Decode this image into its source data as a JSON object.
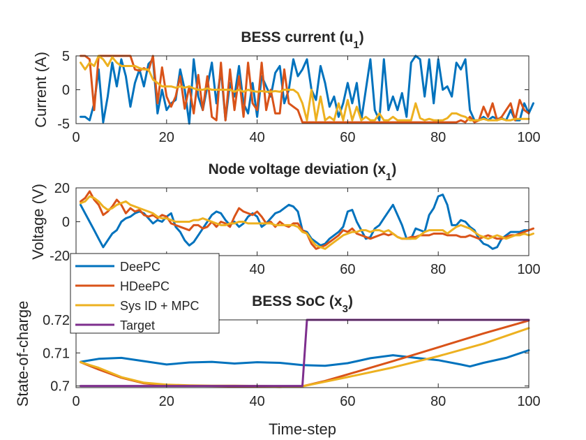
{
  "chart_data": [
    {
      "type": "line",
      "title": "BESS current (u",
      "title_sub": "1",
      "title_end": ")",
      "xlabel": "",
      "ylabel": "Current (A)",
      "xlim": [
        0,
        100
      ],
      "ylim": [
        -5,
        5
      ],
      "xticks": [
        0,
        20,
        40,
        60,
        80,
        100
      ],
      "yticks": [
        -5,
        0,
        5
      ],
      "series": [
        {
          "name": "DeePC",
          "color": "#0072BD",
          "values": [
            -4,
            -4,
            -4.5,
            -2,
            3,
            -4.8,
            -1,
            4,
            0.5,
            4.5,
            2,
            -2.5,
            1,
            3,
            0.5,
            3.8,
            4.5,
            -3.5,
            0,
            -3,
            -2,
            -1.5,
            3,
            0,
            -5,
            4.5,
            -1,
            -3,
            0.5,
            4,
            -2,
            3,
            -4.5,
            1,
            -1,
            3.5,
            -2,
            -3.5,
            1,
            -4,
            2,
            0.5,
            -1,
            2.5,
            3.5,
            -2,
            0,
            4.5,
            2,
            3,
            4.5,
            0,
            -1.5,
            3.5,
            1,
            -2.5,
            -1,
            -4,
            -2,
            1,
            -2,
            1,
            -4.5,
            0,
            4.5,
            -3,
            -4.5,
            4.5,
            -3,
            -1,
            -3,
            -0.5,
            -4,
            4,
            5,
            4.5,
            -1,
            4.5,
            -2,
            4.5,
            0,
            0.5,
            -1,
            4,
            3,
            4.5,
            -3,
            -4.5,
            -4.5,
            -4,
            -4.5,
            -4,
            -4.3,
            -4.2,
            -4.5,
            -3,
            -4.5,
            -4.5,
            -2,
            -3.5,
            -2
          ]
        },
        {
          "name": "HDeePC",
          "color": "#D95319",
          "values": [
            5,
            5,
            4.5,
            -3,
            5,
            5,
            5,
            5,
            5,
            5,
            5,
            5,
            3,
            2.8,
            3.2,
            2.8,
            5,
            -2,
            3.3,
            -1,
            -2.5,
            -1,
            2,
            -2.8,
            0.5,
            -3.5,
            2.2,
            -3,
            2,
            -4,
            -4.5,
            4,
            -4.5,
            3,
            -3,
            2,
            -4,
            4,
            -2,
            -3,
            4,
            -3,
            0,
            -3.5,
            -3.5,
            3,
            -2,
            -2.5,
            -3,
            -4.8,
            -4.8,
            -4.8,
            -4.8,
            -4.8,
            -4.8,
            -4.8,
            -4.8,
            -4.8,
            -4.8,
            -4.8,
            -4.8,
            -4.8,
            -4.8,
            -4.8,
            -4.8,
            -4.8,
            -4.8,
            -4.8,
            -4.8,
            -4.8,
            -4.8,
            -4.8,
            -4.8,
            -4.8,
            -4.8,
            -4.8,
            -4.8,
            -4.8,
            -4.8,
            -4.8,
            -4.8,
            -4.8,
            -4.8,
            -4.8,
            -4.5,
            -4.8,
            -4,
            -4.8,
            -4.5,
            -2.5,
            -4,
            -2,
            -4.5,
            -4,
            -3,
            -2,
            -4.5,
            -1.5,
            -3,
            -3.5
          ]
        },
        {
          "name": "Sys ID + MPC",
          "color": "#EDB120",
          "values": [
            4,
            3,
            4,
            3.5,
            5,
            4.5,
            3.5,
            4.8,
            4,
            3.5,
            3.5,
            3.5,
            3.5,
            3.2,
            3,
            3,
            1.5,
            1,
            0.5,
            0.5,
            0.5,
            0.3,
            0.5,
            0.3,
            0.5,
            0.2,
            0,
            0,
            0.2,
            0,
            0,
            0,
            0,
            0,
            -0.3,
            0,
            -0.3,
            0,
            -0.2,
            -0.3,
            -0.2,
            -0.3,
            -0.3,
            -0.2,
            -0.3,
            0,
            0,
            0,
            -0.5,
            -2,
            -4.5,
            0,
            -4.5,
            -1,
            -4.5,
            -4,
            -4.5,
            -2,
            -4.5,
            -1.5,
            -4.5,
            -2.5,
            -4.5,
            -4,
            -4.5,
            -4.5,
            -3.5,
            -4.5,
            -4.5,
            -4,
            -4.5,
            -4.5,
            -4.5,
            -4.5,
            -2,
            -4.2,
            -4.5,
            -4.3,
            -4.5,
            -4.5,
            -4.5,
            -4.2,
            -3.5,
            -3.5,
            -3.8,
            -4,
            -4.5,
            -4.5,
            -4.5,
            -4.3,
            -4.5,
            -4.5,
            -4.5,
            -4.3,
            -4.5,
            -4.5,
            -4.3,
            -4.3,
            -4.3,
            -4.3
          ]
        }
      ]
    },
    {
      "type": "line",
      "title": "Node voltage deviation (x",
      "title_sub": "1",
      "title_end": ")",
      "xlabel": "",
      "ylabel": "Voltage (V)",
      "xlim": [
        0,
        100
      ],
      "ylim": [
        -20,
        20
      ],
      "xticks": [
        0,
        20,
        40,
        60,
        80,
        100
      ],
      "yticks": [
        -20,
        0,
        20
      ],
      "series": [
        {
          "name": "DeePC",
          "color": "#0072BD",
          "values": [
            10,
            5,
            0,
            -5,
            -10,
            -15,
            -11,
            -7,
            -5,
            0,
            2,
            3,
            5,
            6,
            5,
            2,
            -1,
            1,
            0,
            3,
            5,
            -3,
            -6,
            -11,
            -14,
            -12,
            -8,
            -4,
            0,
            4,
            6,
            5,
            1,
            -2,
            0,
            -3,
            -1,
            3,
            5,
            3,
            -3,
            -1,
            2,
            5,
            6,
            8,
            10,
            9,
            6,
            -5,
            -6,
            -10,
            -12,
            -14,
            -13,
            -10,
            -8,
            -6,
            -3,
            6,
            7,
            0,
            -5,
            -10,
            -9,
            -4,
            -2,
            2,
            6,
            10,
            4,
            -2,
            -10,
            -10,
            -4,
            -5,
            -6,
            4,
            8,
            15,
            16,
            10,
            -2,
            -2,
            1,
            0,
            -3,
            -5,
            -10,
            -13,
            -14,
            -16,
            -15,
            -10,
            -8,
            -6,
            -6,
            -6,
            -5,
            -5
          ]
        },
        {
          "name": "HDeePC",
          "color": "#D95319",
          "values": [
            12,
            14,
            18,
            13,
            10,
            4,
            6,
            9,
            13,
            10,
            5,
            8,
            6,
            7,
            4,
            3,
            4,
            2,
            4,
            3,
            -1,
            -2,
            -3,
            -4,
            -5,
            -2,
            -2,
            -4,
            -3,
            0,
            -3,
            0,
            -1,
            -3,
            3,
            8,
            6,
            5,
            4,
            6,
            3,
            -1,
            0,
            -3,
            0,
            -2,
            -3,
            -1,
            -1,
            -5,
            -7,
            -13,
            -16,
            -15,
            -14,
            -12,
            -10,
            -8,
            -5,
            -6,
            -4,
            -7,
            -8,
            -9,
            -10,
            -9,
            -8,
            -7,
            -8,
            -7,
            -9,
            -10,
            -10,
            -9,
            -9,
            -8,
            -8,
            -8,
            -7,
            -7,
            -7,
            -8,
            -8,
            -8,
            -9,
            -9,
            -8,
            -9,
            -10,
            -9,
            -8,
            -9,
            -10,
            -10,
            -9,
            -8,
            -8,
            -7,
            -6,
            -5,
            -4
          ]
        },
        {
          "name": "Sys ID + MPC",
          "color": "#EDB120",
          "values": [
            11,
            12,
            15,
            14,
            12,
            9,
            7,
            8,
            10,
            11,
            12,
            10,
            9,
            8,
            7,
            6,
            5,
            3,
            2,
            2,
            1,
            0,
            0,
            0,
            0,
            1,
            1,
            2,
            1,
            0,
            -1,
            -2,
            -2,
            -1,
            -1,
            0,
            0,
            -1,
            -1,
            -1,
            -1,
            -1,
            -1,
            -2,
            -2,
            -2,
            -2,
            -2,
            -3,
            -6,
            -7,
            -11,
            -14,
            -15,
            -16,
            -14,
            -12,
            -10,
            -8,
            -7,
            -6,
            -6,
            -5,
            -5,
            -6,
            -5,
            -5,
            -6,
            -5,
            -7,
            -9,
            -10,
            -10,
            -10,
            -10,
            -8,
            -6,
            -5,
            -5,
            -5,
            -5,
            -7,
            -5,
            -3,
            -2,
            -3,
            -4,
            -6,
            -8,
            -9,
            -10,
            -9,
            -8,
            -9,
            -10,
            -9,
            -8,
            -8,
            -7,
            -8,
            -7
          ]
        }
      ]
    },
    {
      "type": "line",
      "title": "BESS SoC (x",
      "title_sub": "3",
      "title_end": ")",
      "xlabel": "Time-step",
      "ylabel": "State-of-charge",
      "xlim": [
        0,
        100
      ],
      "ylim": [
        0.6995,
        0.72
      ],
      "xticks": [
        0,
        20,
        40,
        60,
        80,
        100
      ],
      "yticks": [
        0.7,
        0.71,
        0.72
      ],
      "ytick_labels": [
        "0.7",
        "0.71",
        "0.72"
      ],
      "series": [
        {
          "name": "DeePC",
          "color": "#0072BD",
          "x": [
            1,
            5,
            10,
            15,
            20,
            25,
            30,
            35,
            40,
            45,
            50,
            55,
            60,
            65,
            70,
            75,
            80,
            85,
            87,
            90,
            95,
            100
          ],
          "values": [
            0.7073,
            0.7082,
            0.7085,
            0.7075,
            0.7065,
            0.7071,
            0.7073,
            0.7068,
            0.7072,
            0.707,
            0.7063,
            0.7061,
            0.7069,
            0.7084,
            0.7093,
            0.7085,
            0.7078,
            0.7065,
            0.7059,
            0.707,
            0.7085,
            0.7108
          ]
        },
        {
          "name": "HDeePC",
          "color": "#D95319",
          "x": [
            1,
            5,
            10,
            15,
            20,
            25,
            30,
            35,
            40,
            45,
            50,
            55,
            60,
            70,
            80,
            90,
            100
          ],
          "values": [
            0.7072,
            0.705,
            0.7025,
            0.7008,
            0.7002,
            0.7001,
            0.7,
            0.6999,
            0.6998,
            0.6997,
            0.6999,
            0.7015,
            0.7035,
            0.7075,
            0.7117,
            0.7159,
            0.7198
          ]
        },
        {
          "name": "Sys ID + MPC",
          "color": "#EDB120",
          "x": [
            1,
            5,
            10,
            15,
            20,
            25,
            30,
            35,
            40,
            45,
            50,
            55,
            60,
            70,
            80,
            90,
            100
          ],
          "values": [
            0.7072,
            0.7055,
            0.7027,
            0.701,
            0.7004,
            0.7002,
            0.7001,
            0.7001,
            0.7,
            0.6999,
            0.6999,
            0.7013,
            0.7027,
            0.7056,
            0.709,
            0.7128,
            0.7175
          ]
        },
        {
          "name": "Target",
          "color": "#7E2F8E",
          "x": [
            1,
            50,
            51,
            100
          ],
          "values": [
            0.7,
            0.7,
            0.72,
            0.72
          ]
        }
      ]
    }
  ],
  "legend": {
    "placement": "over middle axes, left",
    "entries": [
      {
        "label": "DeePC",
        "color": "#0072BD"
      },
      {
        "label": "HDeePC",
        "color": "#D95319"
      },
      {
        "label": "Sys ID + MPC",
        "color": "#EDB120"
      },
      {
        "label": "Target",
        "color": "#7E2F8E"
      }
    ]
  }
}
